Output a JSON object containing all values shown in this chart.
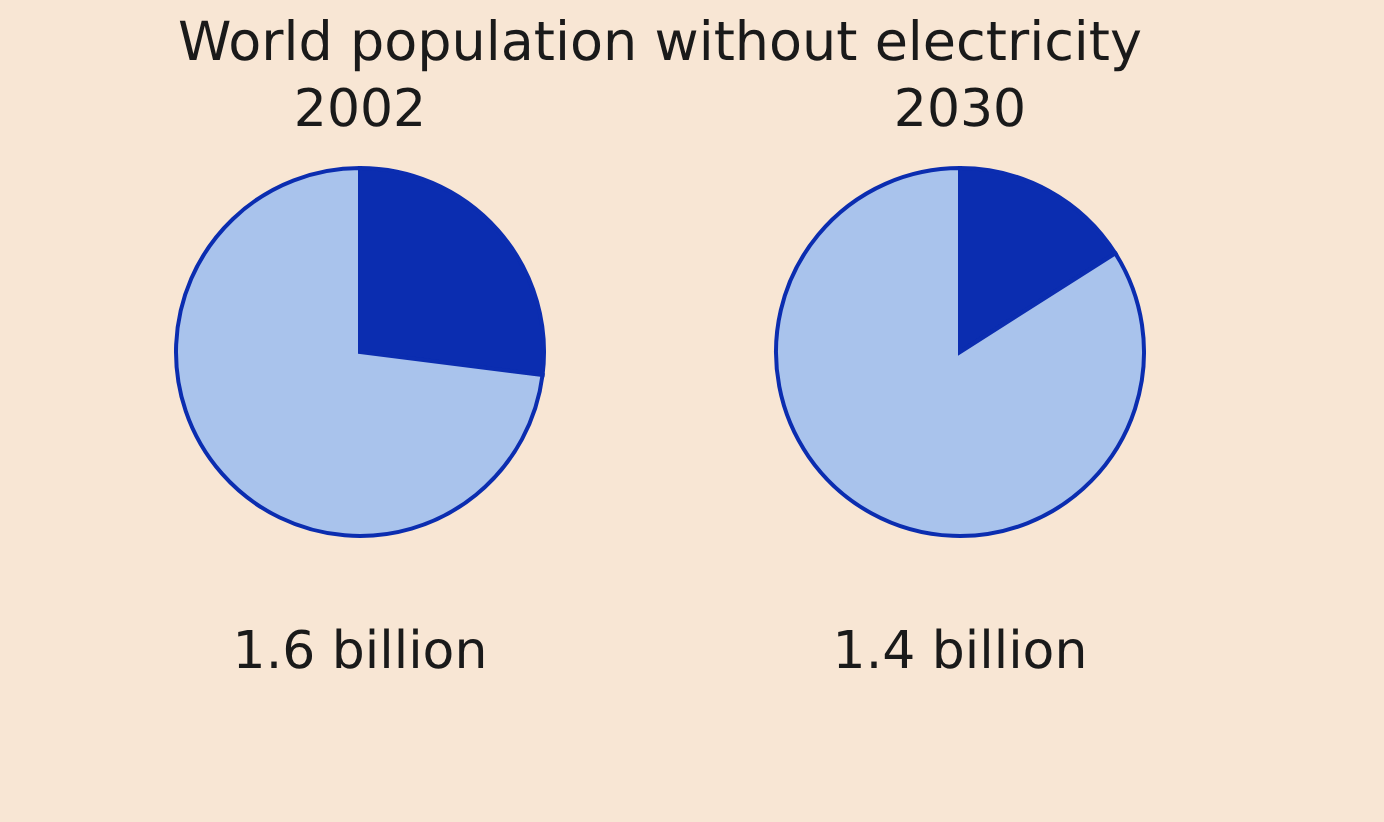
{
  "chart_data": [
    {
      "type": "pie",
      "title": "World population without electricity",
      "subtitle": "2002",
      "categories": [
        null,
        null
      ],
      "values": [
        27,
        73
      ],
      "colors": [
        "#0b2db0",
        "#a9c3ec"
      ],
      "annotations": [
        "1.6 billion"
      ]
    },
    {
      "type": "pie",
      "subtitle": "2030",
      "categories": [
        null,
        null
      ],
      "values": [
        16,
        84
      ],
      "colors": [
        "#0b2db0",
        "#a9c3ec"
      ],
      "annotations": [
        "1.4 billion"
      ]
    }
  ]
}
